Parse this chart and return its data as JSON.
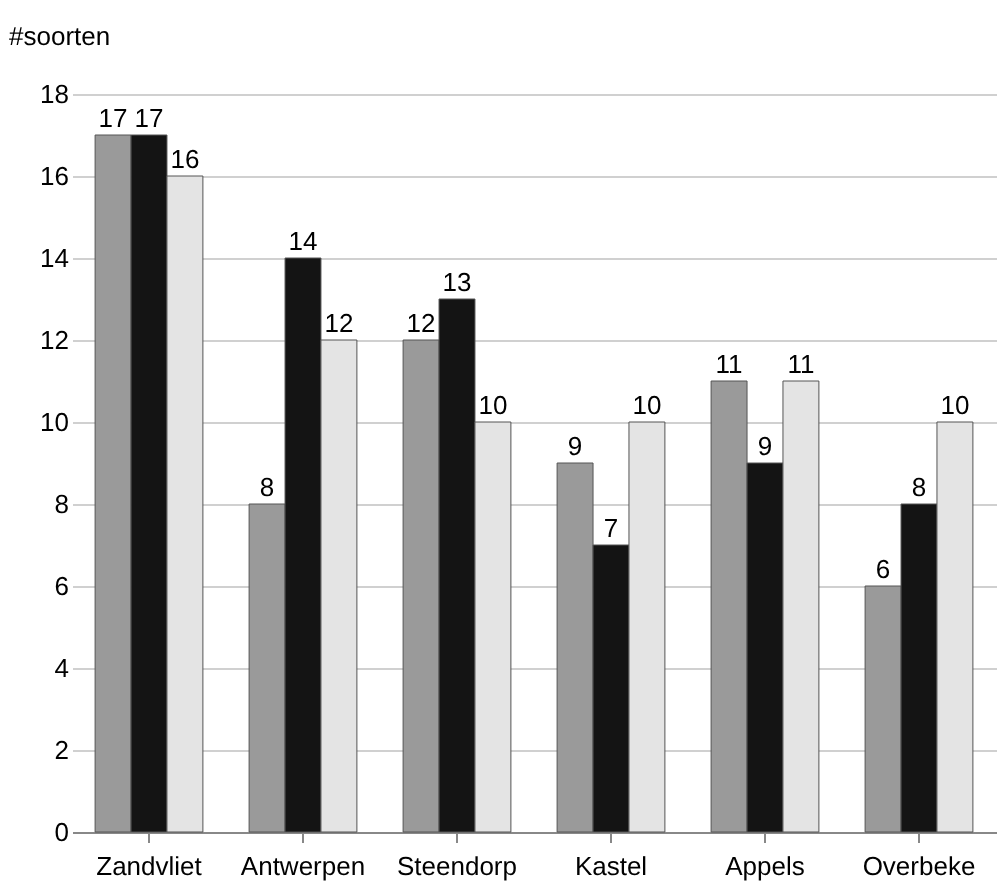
{
  "chart_data": {
    "type": "bar",
    "ylabel": "#soorten",
    "categories": [
      "Zandvliet",
      "Antwerpen",
      "Steendorp",
      "Kastel",
      "Appels",
      "Overbeke"
    ],
    "series": [
      {
        "color": "#9a9a9a",
        "values": [
          17,
          8,
          12,
          9,
          11,
          6
        ]
      },
      {
        "color": "#141414",
        "values": [
          17,
          14,
          13,
          7,
          9,
          8
        ]
      },
      {
        "color": "#e4e4e4",
        "values": [
          16,
          12,
          10,
          10,
          11,
          10
        ]
      }
    ],
    "ylim": [
      0,
      18
    ],
    "yticks": [
      0,
      2,
      4,
      6,
      8,
      10,
      12,
      14,
      16,
      18
    ],
    "grid": "y",
    "data_labels": true
  }
}
